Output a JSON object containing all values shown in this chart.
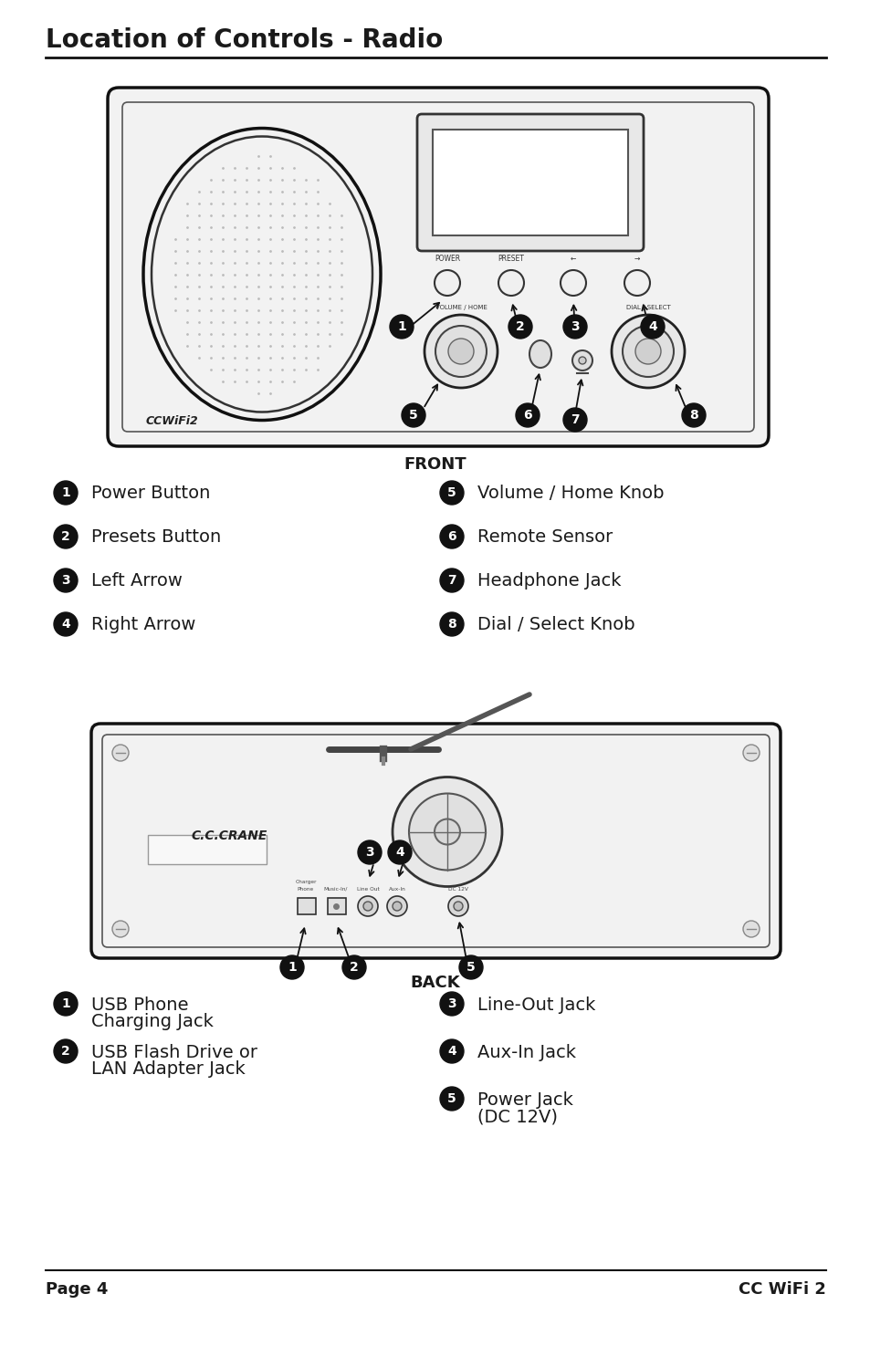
{
  "title": "Location of Controls - Radio",
  "page_left": "Page 4",
  "page_right": "CC WiFi 2",
  "front_label": "FRONT",
  "back_label": "BACK",
  "front_items_left": [
    {
      "num": "1",
      "text": "Power Button"
    },
    {
      "num": "2",
      "text": "Presets Button"
    },
    {
      "num": "3",
      "text": "Left Arrow"
    },
    {
      "num": "4",
      "text": "Right Arrow"
    }
  ],
  "front_items_right": [
    {
      "num": "5",
      "text": "Volume / Home Knob"
    },
    {
      "num": "6",
      "text": "Remote Sensor"
    },
    {
      "num": "7",
      "text": "Headphone Jack"
    },
    {
      "num": "8",
      "text": "Dial / Select Knob"
    }
  ],
  "back_items_left": [
    {
      "num": "1",
      "text": "USB Phone\nCharging Jack"
    },
    {
      "num": "2",
      "text": "USB Flash Drive or\nLAN Adapter Jack"
    }
  ],
  "back_items_right": [
    {
      "num": "3",
      "text": "Line-Out Jack"
    },
    {
      "num": "4",
      "text": "Aux-In Jack"
    },
    {
      "num": "5",
      "text": "Power Jack\n(DC 12V)"
    }
  ],
  "bg_color": "#ffffff",
  "text_color": "#1a1a1a"
}
